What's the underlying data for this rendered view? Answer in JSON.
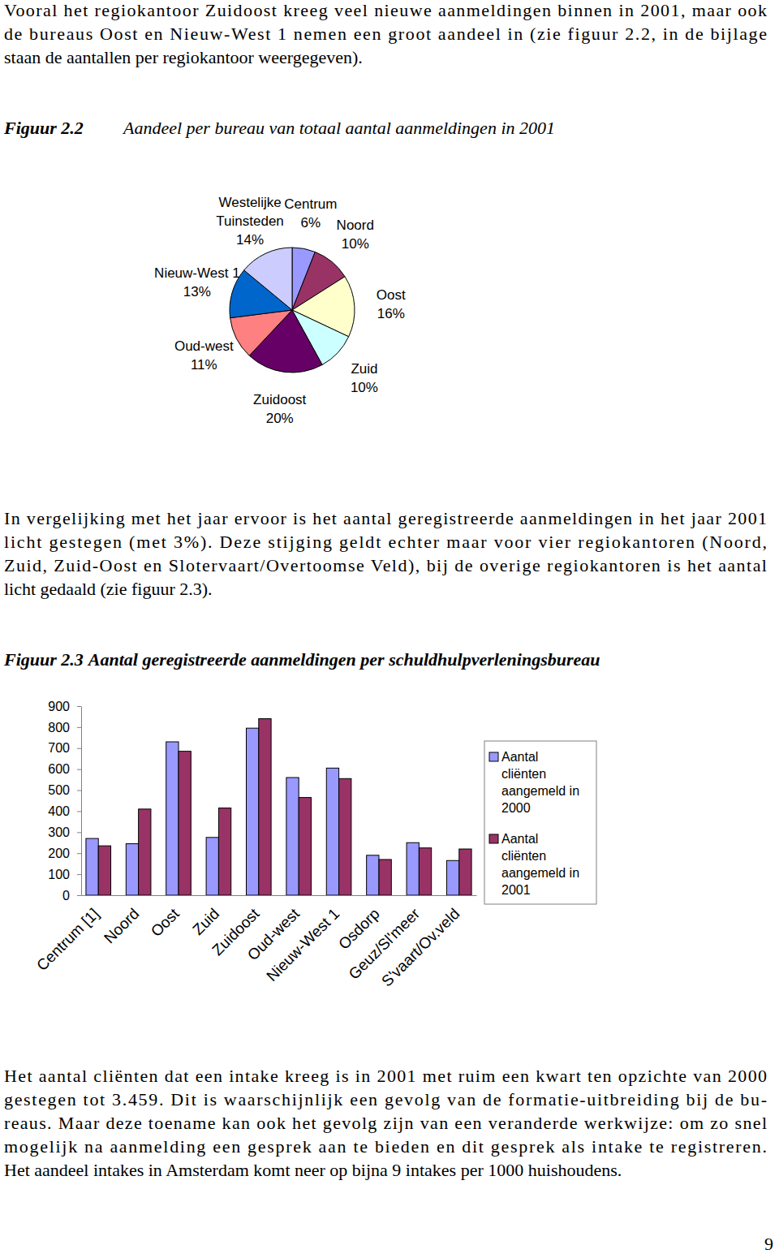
{
  "paragraphs": [
    [
      "Vooral het regiokantoor Zuidoost kreeg veel nieuwe aanmeldingen binnen in 2001, maar ook",
      "de bureaus Oost en Nieuw-West 1 nemen een groot aandeel in (zie figuur 2.2, in de bijlage",
      "staan de aantallen per regiokantoor weergegeven)."
    ],
    [
      "In vergelijking met het jaar ervoor is het aantal geregistreerde aanmeldingen in het jaar 2001",
      "licht gestegen (met 3%). Deze stijging geldt echter maar voor vier regiokantoren (Noord,",
      "Zuid, Zuid-Oost en Slotervaart/Overtoomse Veld), bij de overige regiokantoren is het aantal",
      "licht gedaald (zie figuur 2.3)."
    ],
    [
      "Het aantal cliënten dat een intake kreeg is in 2001 met ruim een kwart ten opzichte van 2000",
      "gestegen tot 3.459. Dit is waarschijnlijk een gevolg van de formatie-uitbreiding bij de bu-",
      "reaus. Maar deze toename kan ook het gevolg zijn van een veranderde werkwijze: om zo snel",
      "mogelijk na aanmelding een gesprek aan te bieden en dit gesprek als intake te registreren.",
      "Het aandeel intakes in Amsterdam komt neer op bijna 9 intakes per 1000 huishoudens."
    ]
  ],
  "chart_data": [
    {
      "type": "pie",
      "figure": "Figuur 2.2",
      "title": "Aandeel per bureau van totaal aantal aanmeldingen in 2001",
      "categories": [
        "Centrum",
        "Noord",
        "Oost",
        "Zuid",
        "Zuidoost",
        "Oud-west",
        "Nieuw-West 1",
        "Westelijke Tuinsteden"
      ],
      "values": [
        6,
        10,
        16,
        10,
        20,
        11,
        13,
        14
      ],
      "value_labels": [
        "6%",
        "10%",
        "16%",
        "10%",
        "20%",
        "11%",
        "13%",
        "14%"
      ],
      "colors": [
        "#9999ff",
        "#993366",
        "#ffffcc",
        "#ccffff",
        "#660066",
        "#ff8080",
        "#0066cc",
        "#ccccff"
      ],
      "data_labels": true
    },
    {
      "type": "bar",
      "figure": "Figuur 2.3",
      "title": "Aantal geregistreerde aanmeldingen per schuldhulpverleningsbureau",
      "categories": [
        "Centrum [1]",
        "Noord",
        "Oost",
        "Zuid",
        "Zuidoost",
        "Oud-west",
        "Nieuw-West 1",
        "Osdorp",
        "Geuz/Sl'meer",
        "S'vaart/Ov.veld"
      ],
      "series": [
        {
          "name": "Aantal cliënten aangemeld in 2000",
          "color": "#9999ff",
          "values": [
            270,
            245,
            730,
            275,
            795,
            560,
            605,
            190,
            250,
            165
          ]
        },
        {
          "name": "Aantal cliënten aangemeld in 2001",
          "color": "#993366",
          "values": [
            235,
            410,
            685,
            415,
            840,
            465,
            555,
            170,
            225,
            220
          ]
        }
      ],
      "ylim": [
        0,
        900
      ],
      "yticks": [
        0,
        100,
        200,
        300,
        400,
        500,
        600,
        700,
        800,
        900
      ],
      "legend": "right"
    }
  ],
  "page_number": "9"
}
